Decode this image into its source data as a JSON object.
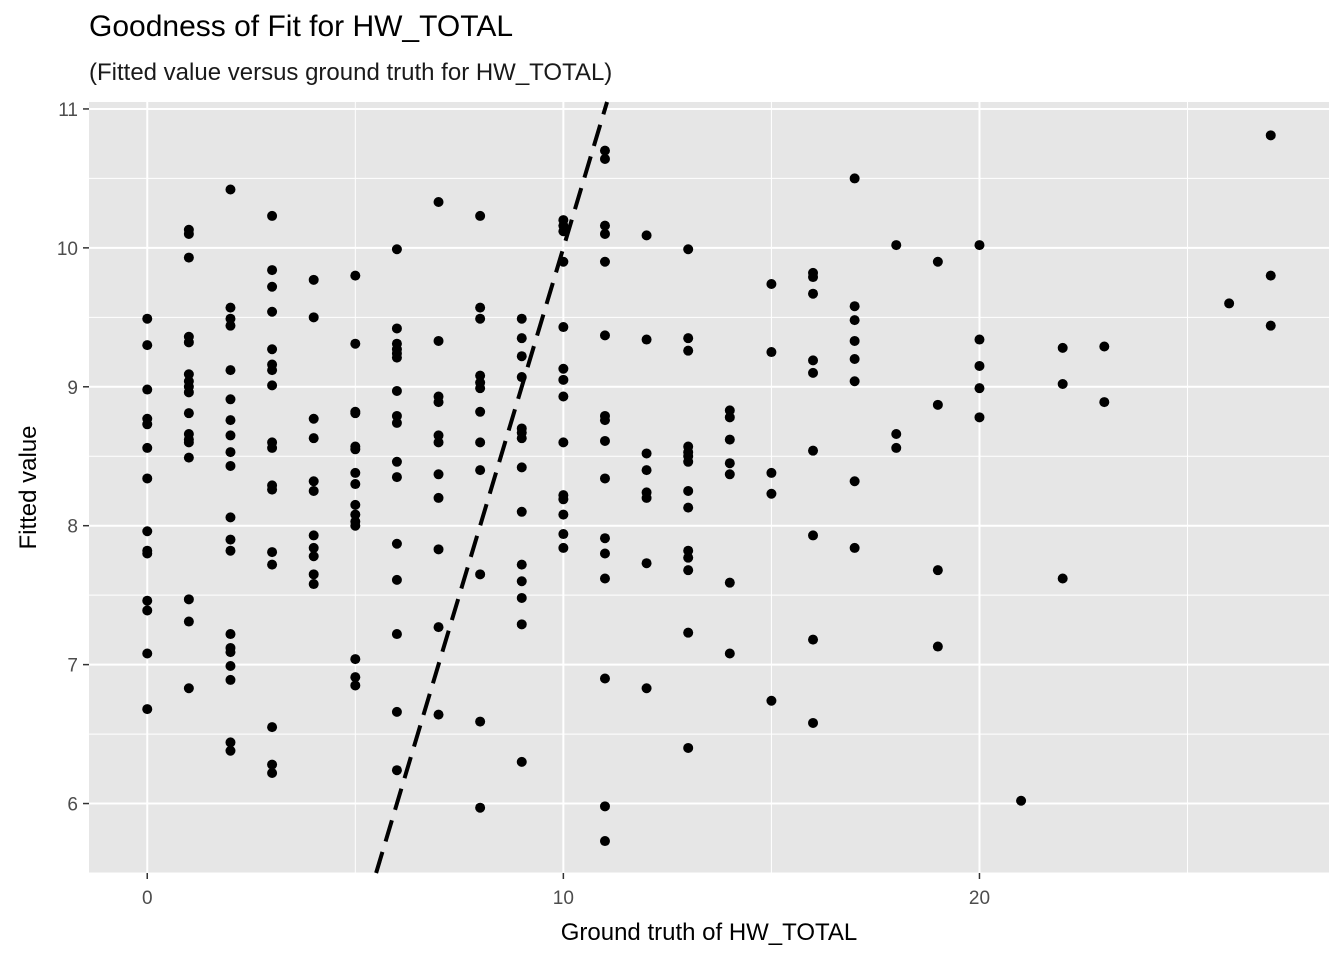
{
  "chart_data": {
    "type": "scatter",
    "title": "Goodness of Fit for HW_TOTAL",
    "subtitle": "(Fitted value versus ground truth for HW_TOTAL)",
    "xlabel": "Ground truth of HW_TOTAL",
    "ylabel": "Fitted value",
    "xlim": [
      -1.4,
      28.4
    ],
    "ylim": [
      5.5,
      11.05
    ],
    "x_ticks": [
      0,
      10,
      20
    ],
    "x_tick_labels": [
      "0",
      "10",
      "20"
    ],
    "y_ticks": [
      6,
      7,
      8,
      9,
      10,
      11
    ],
    "y_tick_labels": [
      "6",
      "7",
      "8",
      "9",
      "10",
      "11"
    ],
    "grid": true,
    "reference_line": {
      "type": "identity",
      "style": "dashed",
      "color": "#000000"
    },
    "point_color": "#000000",
    "panel_color": "#e6e6e6",
    "grid_color": "#ffffff",
    "points": [
      [
        0,
        9.49
      ],
      [
        0,
        9.3
      ],
      [
        0,
        8.98
      ],
      [
        0,
        8.77
      ],
      [
        0,
        8.73
      ],
      [
        0,
        8.56
      ],
      [
        0,
        8.34
      ],
      [
        0,
        7.96
      ],
      [
        0,
        7.82
      ],
      [
        0,
        7.8
      ],
      [
        0,
        7.46
      ],
      [
        0,
        7.39
      ],
      [
        0,
        7.08
      ],
      [
        0,
        6.68
      ],
      [
        1,
        10.13
      ],
      [
        1,
        10.1
      ],
      [
        1,
        9.93
      ],
      [
        1,
        9.36
      ],
      [
        1,
        9.32
      ],
      [
        1,
        9.09
      ],
      [
        1,
        9.04
      ],
      [
        1,
        9.0
      ],
      [
        1,
        8.96
      ],
      [
        1,
        8.81
      ],
      [
        1,
        8.66
      ],
      [
        1,
        8.62
      ],
      [
        1,
        8.6
      ],
      [
        1,
        8.49
      ],
      [
        1,
        7.47
      ],
      [
        1,
        7.31
      ],
      [
        1,
        6.83
      ],
      [
        2,
        10.42
      ],
      [
        2,
        9.57
      ],
      [
        2,
        9.49
      ],
      [
        2,
        9.44
      ],
      [
        2,
        9.12
      ],
      [
        2,
        8.91
      ],
      [
        2,
        8.76
      ],
      [
        2,
        8.65
      ],
      [
        2,
        8.53
      ],
      [
        2,
        8.43
      ],
      [
        2,
        8.06
      ],
      [
        2,
        7.9
      ],
      [
        2,
        7.82
      ],
      [
        2,
        7.22
      ],
      [
        2,
        7.12
      ],
      [
        2,
        7.09
      ],
      [
        2,
        6.99
      ],
      [
        2,
        6.89
      ],
      [
        2,
        6.44
      ],
      [
        2,
        6.38
      ],
      [
        3,
        10.23
      ],
      [
        3,
        9.84
      ],
      [
        3,
        9.72
      ],
      [
        3,
        9.54
      ],
      [
        3,
        9.27
      ],
      [
        3,
        9.16
      ],
      [
        3,
        9.12
      ],
      [
        3,
        9.01
      ],
      [
        3,
        8.6
      ],
      [
        3,
        8.56
      ],
      [
        3,
        8.29
      ],
      [
        3,
        8.26
      ],
      [
        3,
        7.81
      ],
      [
        3,
        7.72
      ],
      [
        3,
        6.55
      ],
      [
        3,
        6.28
      ],
      [
        3,
        6.22
      ],
      [
        4,
        9.77
      ],
      [
        4,
        9.5
      ],
      [
        4,
        8.77
      ],
      [
        4,
        8.63
      ],
      [
        4,
        8.32
      ],
      [
        4,
        8.25
      ],
      [
        4,
        7.93
      ],
      [
        4,
        7.84
      ],
      [
        4,
        7.78
      ],
      [
        4,
        7.65
      ],
      [
        4,
        7.58
      ],
      [
        5,
        9.8
      ],
      [
        5,
        9.31
      ],
      [
        5,
        8.82
      ],
      [
        5,
        8.81
      ],
      [
        5,
        8.57
      ],
      [
        5,
        8.55
      ],
      [
        5,
        8.38
      ],
      [
        5,
        8.3
      ],
      [
        5,
        8.15
      ],
      [
        5,
        8.08
      ],
      [
        5,
        8.03
      ],
      [
        5,
        8.0
      ],
      [
        5,
        7.04
      ],
      [
        5,
        6.91
      ],
      [
        5,
        6.85
      ],
      [
        6,
        9.99
      ],
      [
        6,
        9.42
      ],
      [
        6,
        9.31
      ],
      [
        6,
        9.27
      ],
      [
        6,
        9.24
      ],
      [
        6,
        9.21
      ],
      [
        6,
        8.97
      ],
      [
        6,
        8.79
      ],
      [
        6,
        8.74
      ],
      [
        6,
        8.46
      ],
      [
        6,
        8.35
      ],
      [
        6,
        7.87
      ],
      [
        6,
        7.61
      ],
      [
        6,
        7.22
      ],
      [
        6,
        6.66
      ],
      [
        6,
        6.24
      ],
      [
        7,
        10.33
      ],
      [
        7,
        9.33
      ],
      [
        7,
        8.93
      ],
      [
        7,
        8.89
      ],
      [
        7,
        8.65
      ],
      [
        7,
        8.6
      ],
      [
        7,
        8.37
      ],
      [
        7,
        8.2
      ],
      [
        7,
        7.83
      ],
      [
        7,
        7.27
      ],
      [
        7,
        6.64
      ],
      [
        8,
        10.23
      ],
      [
        8,
        9.57
      ],
      [
        8,
        9.49
      ],
      [
        8,
        9.08
      ],
      [
        8,
        9.03
      ],
      [
        8,
        8.99
      ],
      [
        8,
        8.82
      ],
      [
        8,
        8.6
      ],
      [
        8,
        8.4
      ],
      [
        8,
        7.65
      ],
      [
        8,
        6.59
      ],
      [
        8,
        5.97
      ],
      [
        9,
        9.49
      ],
      [
        9,
        9.35
      ],
      [
        9,
        9.22
      ],
      [
        9,
        9.07
      ],
      [
        9,
        8.7
      ],
      [
        9,
        8.67
      ],
      [
        9,
        8.63
      ],
      [
        9,
        8.42
      ],
      [
        9,
        8.1
      ],
      [
        9,
        7.72
      ],
      [
        9,
        7.6
      ],
      [
        9,
        7.48
      ],
      [
        9,
        7.29
      ],
      [
        9,
        6.3
      ],
      [
        10,
        10.2
      ],
      [
        10,
        10.16
      ],
      [
        10,
        10.12
      ],
      [
        10,
        9.9
      ],
      [
        10,
        9.43
      ],
      [
        10,
        9.13
      ],
      [
        10,
        9.05
      ],
      [
        10,
        8.93
      ],
      [
        10,
        8.6
      ],
      [
        10,
        8.22
      ],
      [
        10,
        8.19
      ],
      [
        10,
        8.08
      ],
      [
        10,
        7.94
      ],
      [
        10,
        7.84
      ],
      [
        11,
        10.7
      ],
      [
        11,
        10.64
      ],
      [
        11,
        10.16
      ],
      [
        11,
        10.1
      ],
      [
        11,
        9.9
      ],
      [
        11,
        9.37
      ],
      [
        11,
        8.79
      ],
      [
        11,
        8.76
      ],
      [
        11,
        8.61
      ],
      [
        11,
        8.34
      ],
      [
        11,
        7.91
      ],
      [
        11,
        7.8
      ],
      [
        11,
        7.62
      ],
      [
        11,
        6.9
      ],
      [
        11,
        5.98
      ],
      [
        11,
        5.73
      ],
      [
        12,
        10.09
      ],
      [
        12,
        9.34
      ],
      [
        12,
        8.52
      ],
      [
        12,
        8.4
      ],
      [
        12,
        8.24
      ],
      [
        12,
        8.2
      ],
      [
        12,
        7.73
      ],
      [
        12,
        6.83
      ],
      [
        13,
        9.99
      ],
      [
        13,
        9.35
      ],
      [
        13,
        9.26
      ],
      [
        13,
        8.57
      ],
      [
        13,
        8.53
      ],
      [
        13,
        8.5
      ],
      [
        13,
        8.46
      ],
      [
        13,
        8.25
      ],
      [
        13,
        8.13
      ],
      [
        13,
        7.82
      ],
      [
        13,
        7.77
      ],
      [
        13,
        7.68
      ],
      [
        13,
        7.23
      ],
      [
        13,
        6.4
      ],
      [
        14,
        8.83
      ],
      [
        14,
        8.78
      ],
      [
        14,
        8.62
      ],
      [
        14,
        8.45
      ],
      [
        14,
        8.37
      ],
      [
        14,
        7.59
      ],
      [
        14,
        7.08
      ],
      [
        15,
        9.74
      ],
      [
        15,
        9.25
      ],
      [
        15,
        8.38
      ],
      [
        15,
        8.23
      ],
      [
        15,
        6.74
      ],
      [
        16,
        9.82
      ],
      [
        16,
        9.79
      ],
      [
        16,
        9.67
      ],
      [
        16,
        9.19
      ],
      [
        16,
        9.1
      ],
      [
        16,
        8.54
      ],
      [
        16,
        7.93
      ],
      [
        16,
        7.18
      ],
      [
        16,
        6.58
      ],
      [
        17,
        10.5
      ],
      [
        17,
        9.58
      ],
      [
        17,
        9.48
      ],
      [
        17,
        9.33
      ],
      [
        17,
        9.2
      ],
      [
        17,
        9.04
      ],
      [
        17,
        8.32
      ],
      [
        17,
        7.84
      ],
      [
        18,
        10.02
      ],
      [
        18,
        8.66
      ],
      [
        18,
        8.56
      ],
      [
        19,
        9.9
      ],
      [
        19,
        8.87
      ],
      [
        19,
        7.68
      ],
      [
        19,
        7.13
      ],
      [
        20,
        10.02
      ],
      [
        20,
        9.34
      ],
      [
        20,
        9.15
      ],
      [
        20,
        8.99
      ],
      [
        20,
        8.78
      ],
      [
        21,
        6.02
      ],
      [
        22,
        9.28
      ],
      [
        22,
        9.02
      ],
      [
        22,
        7.62
      ],
      [
        23,
        9.29
      ],
      [
        23,
        8.89
      ],
      [
        26,
        9.6
      ],
      [
        27,
        10.81
      ],
      [
        27,
        9.8
      ],
      [
        27,
        9.44
      ]
    ]
  }
}
